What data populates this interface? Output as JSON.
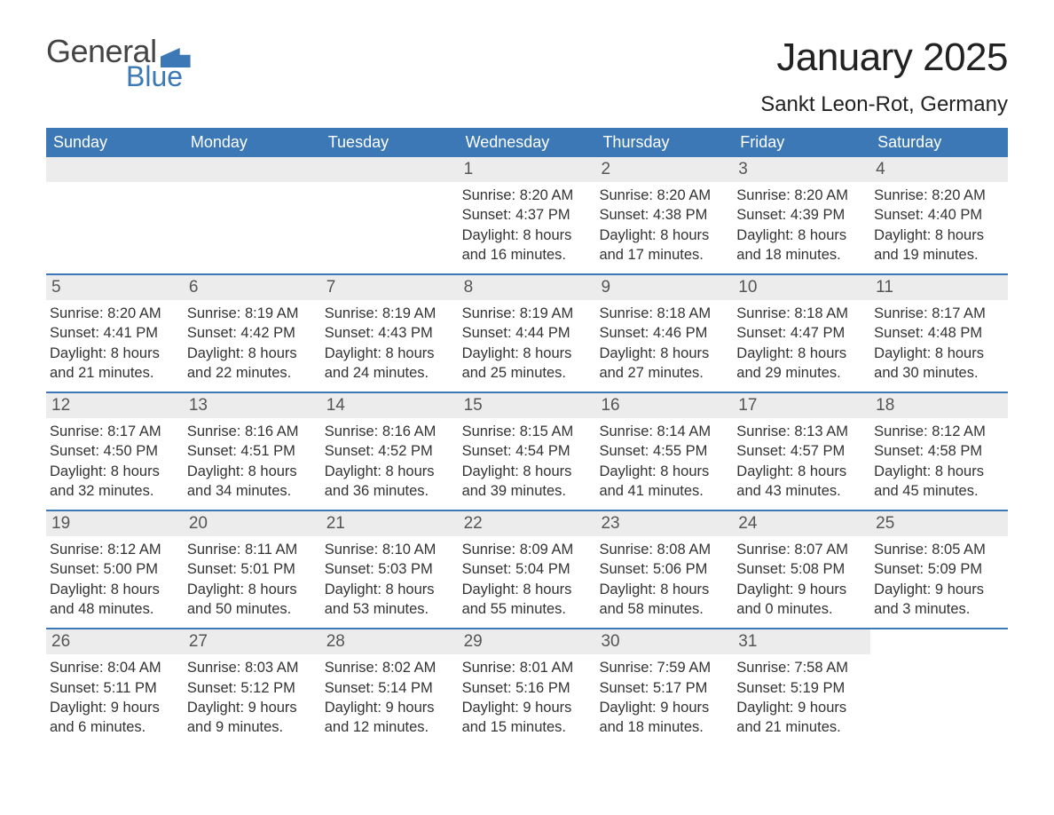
{
  "logo": {
    "word1": "General",
    "word2": "Blue"
  },
  "title": "January 2025",
  "location": "Sankt Leon-Rot, Germany",
  "colors": {
    "accent": "#3b78b5",
    "header_bg": "#3b78b5",
    "header_text": "#ffffff",
    "daynum_bg": "#ececec",
    "text": "#333333",
    "bg": "#ffffff"
  },
  "weekdays": [
    "Sunday",
    "Monday",
    "Tuesday",
    "Wednesday",
    "Thursday",
    "Friday",
    "Saturday"
  ],
  "weeks": [
    [
      null,
      null,
      null,
      {
        "n": "1",
        "sunrise": "8:20 AM",
        "sunset": "4:37 PM",
        "dl_h": "8",
        "dl_m": "16"
      },
      {
        "n": "2",
        "sunrise": "8:20 AM",
        "sunset": "4:38 PM",
        "dl_h": "8",
        "dl_m": "17"
      },
      {
        "n": "3",
        "sunrise": "8:20 AM",
        "sunset": "4:39 PM",
        "dl_h": "8",
        "dl_m": "18"
      },
      {
        "n": "4",
        "sunrise": "8:20 AM",
        "sunset": "4:40 PM",
        "dl_h": "8",
        "dl_m": "19"
      }
    ],
    [
      {
        "n": "5",
        "sunrise": "8:20 AM",
        "sunset": "4:41 PM",
        "dl_h": "8",
        "dl_m": "21"
      },
      {
        "n": "6",
        "sunrise": "8:19 AM",
        "sunset": "4:42 PM",
        "dl_h": "8",
        "dl_m": "22"
      },
      {
        "n": "7",
        "sunrise": "8:19 AM",
        "sunset": "4:43 PM",
        "dl_h": "8",
        "dl_m": "24"
      },
      {
        "n": "8",
        "sunrise": "8:19 AM",
        "sunset": "4:44 PM",
        "dl_h": "8",
        "dl_m": "25"
      },
      {
        "n": "9",
        "sunrise": "8:18 AM",
        "sunset": "4:46 PM",
        "dl_h": "8",
        "dl_m": "27"
      },
      {
        "n": "10",
        "sunrise": "8:18 AM",
        "sunset": "4:47 PM",
        "dl_h": "8",
        "dl_m": "29"
      },
      {
        "n": "11",
        "sunrise": "8:17 AM",
        "sunset": "4:48 PM",
        "dl_h": "8",
        "dl_m": "30"
      }
    ],
    [
      {
        "n": "12",
        "sunrise": "8:17 AM",
        "sunset": "4:50 PM",
        "dl_h": "8",
        "dl_m": "32"
      },
      {
        "n": "13",
        "sunrise": "8:16 AM",
        "sunset": "4:51 PM",
        "dl_h": "8",
        "dl_m": "34"
      },
      {
        "n": "14",
        "sunrise": "8:16 AM",
        "sunset": "4:52 PM",
        "dl_h": "8",
        "dl_m": "36"
      },
      {
        "n": "15",
        "sunrise": "8:15 AM",
        "sunset": "4:54 PM",
        "dl_h": "8",
        "dl_m": "39"
      },
      {
        "n": "16",
        "sunrise": "8:14 AM",
        "sunset": "4:55 PM",
        "dl_h": "8",
        "dl_m": "41"
      },
      {
        "n": "17",
        "sunrise": "8:13 AM",
        "sunset": "4:57 PM",
        "dl_h": "8",
        "dl_m": "43"
      },
      {
        "n": "18",
        "sunrise": "8:12 AM",
        "sunset": "4:58 PM",
        "dl_h": "8",
        "dl_m": "45"
      }
    ],
    [
      {
        "n": "19",
        "sunrise": "8:12 AM",
        "sunset": "5:00 PM",
        "dl_h": "8",
        "dl_m": "48"
      },
      {
        "n": "20",
        "sunrise": "8:11 AM",
        "sunset": "5:01 PM",
        "dl_h": "8",
        "dl_m": "50"
      },
      {
        "n": "21",
        "sunrise": "8:10 AM",
        "sunset": "5:03 PM",
        "dl_h": "8",
        "dl_m": "53"
      },
      {
        "n": "22",
        "sunrise": "8:09 AM",
        "sunset": "5:04 PM",
        "dl_h": "8",
        "dl_m": "55"
      },
      {
        "n": "23",
        "sunrise": "8:08 AM",
        "sunset": "5:06 PM",
        "dl_h": "8",
        "dl_m": "58"
      },
      {
        "n": "24",
        "sunrise": "8:07 AM",
        "sunset": "5:08 PM",
        "dl_h": "9",
        "dl_m": "0"
      },
      {
        "n": "25",
        "sunrise": "8:05 AM",
        "sunset": "5:09 PM",
        "dl_h": "9",
        "dl_m": "3"
      }
    ],
    [
      {
        "n": "26",
        "sunrise": "8:04 AM",
        "sunset": "5:11 PM",
        "dl_h": "9",
        "dl_m": "6"
      },
      {
        "n": "27",
        "sunrise": "8:03 AM",
        "sunset": "5:12 PM",
        "dl_h": "9",
        "dl_m": "9"
      },
      {
        "n": "28",
        "sunrise": "8:02 AM",
        "sunset": "5:14 PM",
        "dl_h": "9",
        "dl_m": "12"
      },
      {
        "n": "29",
        "sunrise": "8:01 AM",
        "sunset": "5:16 PM",
        "dl_h": "9",
        "dl_m": "15"
      },
      {
        "n": "30",
        "sunrise": "7:59 AM",
        "sunset": "5:17 PM",
        "dl_h": "9",
        "dl_m": "18"
      },
      {
        "n": "31",
        "sunrise": "7:58 AM",
        "sunset": "5:19 PM",
        "dl_h": "9",
        "dl_m": "21"
      },
      null
    ]
  ],
  "labels": {
    "sunrise": "Sunrise: ",
    "sunset": "Sunset: ",
    "daylight_pre": "Daylight: ",
    "hours": " hours",
    "and": "and ",
    "minutes": " minutes."
  }
}
